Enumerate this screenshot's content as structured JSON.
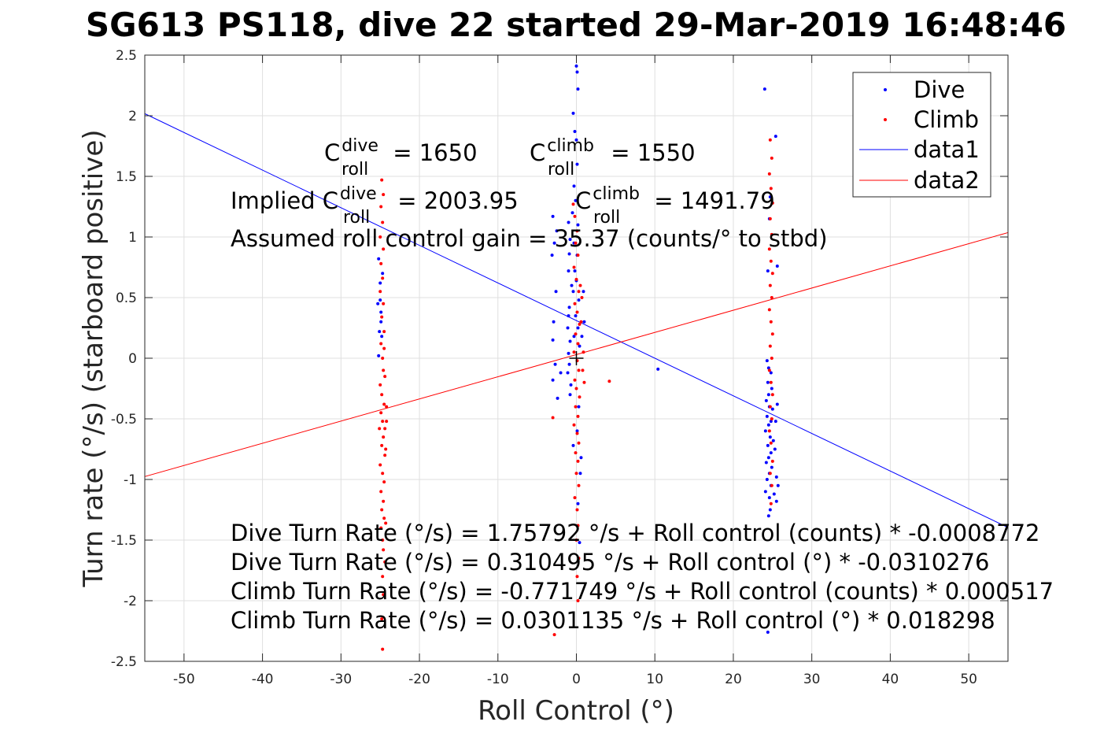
{
  "title": "SG613 PS118, dive 22 started 29-Mar-2019 16:48:46",
  "chart_data": {
    "type": "scatter",
    "xlabel": "Roll Control (°)",
    "ylabel": "Turn rate (°/s) (starboard positive)",
    "xlim": [
      -55,
      55
    ],
    "ylim": [
      -2.5,
      2.5
    ],
    "xticks": [
      -50,
      -40,
      -30,
      -20,
      -10,
      0,
      10,
      20,
      30,
      40,
      50
    ],
    "yticks": [
      -2.5,
      -2,
      -1.5,
      -1,
      -0.5,
      0,
      0.5,
      1,
      1.5,
      2,
      2.5
    ],
    "grid": true,
    "legend_position": "top-right",
    "series": [
      {
        "name": "Dive",
        "color": "#0000ff",
        "mode": "markers",
        "points": [
          [
            -25.2,
            0.82
          ],
          [
            -25.0,
            0.48
          ],
          [
            -25.3,
            0.45
          ],
          [
            -24.9,
            0.38
          ],
          [
            -25.1,
            0.22
          ],
          [
            -24.8,
            0.18
          ],
          [
            -25.2,
            0.02
          ],
          [
            -24.7,
            0.7
          ],
          [
            -25.0,
            0.62
          ],
          [
            -24.9,
            0.3
          ],
          [
            -3.0,
            1.17
          ],
          [
            -2.5,
            1.05
          ],
          [
            -2.8,
            0.95
          ],
          [
            -3.1,
            0.85
          ],
          [
            -2.6,
            0.55
          ],
          [
            -2.9,
            0.3
          ],
          [
            -3.0,
            0.15
          ],
          [
            -2.7,
            -0.05
          ],
          [
            -3.0,
            -0.18
          ],
          [
            -2.4,
            -0.33
          ],
          [
            -2.0,
            -0.12
          ],
          [
            -1.0,
            1.12
          ],
          [
            -0.8,
            0.98
          ],
          [
            -0.9,
            0.86
          ],
          [
            -1.0,
            0.72
          ],
          [
            -0.6,
            0.6
          ],
          [
            -0.9,
            0.42
          ],
          [
            -1.1,
            0.25
          ],
          [
            -0.8,
            0.14
          ],
          [
            -1.0,
            0.04
          ],
          [
            -0.9,
            -0.05
          ],
          [
            -1.1,
            -0.12
          ],
          [
            -0.7,
            -0.22
          ],
          [
            -1.0,
            0.35
          ],
          [
            -0.8,
            -0.3
          ],
          [
            -0.4,
            2.02
          ],
          [
            -0.2,
            1.87
          ],
          [
            0.0,
            1.8
          ],
          [
            0.1,
            1.6
          ],
          [
            -0.3,
            1.42
          ],
          [
            -0.1,
            1.3
          ],
          [
            -0.5,
            1.2
          ],
          [
            0.2,
            1.1
          ],
          [
            -0.3,
            0.95
          ],
          [
            0.1,
            0.85
          ],
          [
            -0.2,
            0.72
          ],
          [
            0.0,
            0.64
          ],
          [
            -0.4,
            0.55
          ],
          [
            0.3,
            0.48
          ],
          [
            -0.1,
            0.35
          ],
          [
            0.2,
            0.25
          ],
          [
            -0.3,
            0.18
          ],
          [
            0.4,
            0.1
          ],
          [
            0.0,
            2.41
          ],
          [
            0.1,
            2.36
          ],
          [
            0.2,
            2.22
          ],
          [
            0.3,
            -0.4
          ],
          [
            0.1,
            -0.6
          ],
          [
            -0.4,
            -0.72
          ],
          [
            0.5,
            -0.95
          ],
          [
            0.2,
            -1.2
          ],
          [
            0.4,
            -1.52
          ],
          [
            0.6,
            -0.82
          ],
          [
            0.7,
            0.18
          ],
          [
            0.9,
            0.55
          ],
          [
            1.0,
            0.3
          ],
          [
            10.4,
            -0.09
          ],
          [
            24.0,
            2.22
          ],
          [
            25.4,
            1.83
          ],
          [
            24.7,
            1.33
          ],
          [
            24.6,
            1.15
          ],
          [
            25.6,
            0.76
          ],
          [
            24.4,
            0.72
          ],
          [
            24.3,
            -0.02
          ],
          [
            24.5,
            -0.08
          ],
          [
            24.8,
            -0.12
          ],
          [
            24.4,
            -0.2
          ],
          [
            24.9,
            -0.25
          ],
          [
            24.5,
            -0.3
          ],
          [
            24.2,
            -0.35
          ],
          [
            24.6,
            -0.4
          ],
          [
            25.0,
            -0.42
          ],
          [
            24.3,
            -0.48
          ],
          [
            24.8,
            -0.52
          ],
          [
            24.5,
            -0.55
          ],
          [
            24.1,
            -0.6
          ],
          [
            24.7,
            -0.65
          ],
          [
            25.1,
            -0.68
          ],
          [
            24.4,
            -0.72
          ],
          [
            24.8,
            -0.78
          ],
          [
            24.5,
            -0.82
          ],
          [
            24.2,
            -0.86
          ],
          [
            24.9,
            -0.9
          ],
          [
            24.6,
            -0.95
          ],
          [
            24.3,
            -1.0
          ],
          [
            24.8,
            -1.05
          ],
          [
            24.1,
            -1.1
          ],
          [
            24.6,
            -1.15
          ],
          [
            25.2,
            -1.12
          ],
          [
            25.5,
            -1.18
          ],
          [
            24.7,
            -1.25
          ],
          [
            24.5,
            -1.3
          ],
          [
            25.6,
            -0.38
          ],
          [
            25.4,
            -0.52
          ],
          [
            25.3,
            -0.75
          ],
          [
            25.5,
            -0.98
          ],
          [
            25.7,
            -1.05
          ],
          [
            24.4,
            -2.26
          ]
        ]
      },
      {
        "name": "Climb",
        "color": "#ff0000",
        "mode": "markers",
        "points": [
          [
            -24.8,
            1.47
          ],
          [
            -24.6,
            1.35
          ],
          [
            -24.9,
            1.25
          ],
          [
            -24.7,
            1.12
          ],
          [
            -25.0,
            1.0
          ],
          [
            -24.6,
            0.9
          ],
          [
            -24.9,
            0.78
          ],
          [
            -24.7,
            0.66
          ],
          [
            -25.0,
            0.55
          ],
          [
            -24.6,
            0.45
          ],
          [
            -24.8,
            0.34
          ],
          [
            -24.5,
            0.22
          ],
          [
            -24.9,
            0.12
          ],
          [
            -24.7,
            0.0
          ],
          [
            -24.6,
            -0.1
          ],
          [
            -25.0,
            -0.22
          ],
          [
            -24.8,
            -0.3
          ],
          [
            -24.5,
            -0.38
          ],
          [
            -24.9,
            -0.45
          ],
          [
            -24.7,
            -0.52
          ],
          [
            -25.1,
            -0.58
          ],
          [
            -24.6,
            -0.65
          ],
          [
            -24.8,
            -0.72
          ],
          [
            -24.4,
            -0.8
          ],
          [
            -25.0,
            -0.88
          ],
          [
            -24.7,
            -0.95
          ],
          [
            -24.5,
            -1.02
          ],
          [
            -24.9,
            -1.1
          ],
          [
            -24.6,
            -1.18
          ],
          [
            -24.8,
            -1.25
          ],
          [
            -24.5,
            -1.32
          ],
          [
            -24.9,
            -1.4
          ],
          [
            -24.7,
            -1.5
          ],
          [
            -24.6,
            -1.58
          ],
          [
            -24.4,
            -1.68
          ],
          [
            -24.7,
            -1.8
          ],
          [
            -24.6,
            -1.95
          ],
          [
            -24.8,
            -2.15
          ],
          [
            -24.7,
            -2.4
          ],
          [
            -24.4,
            -0.58
          ],
          [
            -24.3,
            -0.75
          ],
          [
            -24.2,
            -0.4
          ],
          [
            -24.3,
            -1.36
          ],
          [
            -24.5,
            0.08
          ],
          [
            -24.4,
            -0.15
          ],
          [
            -24.2,
            -0.52
          ],
          [
            -3.0,
            -0.49
          ],
          [
            -2.8,
            -2.28
          ],
          [
            -0.4,
            1.27
          ],
          [
            -0.2,
            1.17
          ],
          [
            0.1,
            1.05
          ],
          [
            -0.1,
            0.95
          ],
          [
            0.2,
            0.85
          ],
          [
            -0.3,
            0.75
          ],
          [
            0.0,
            0.65
          ],
          [
            0.3,
            0.55
          ],
          [
            -0.2,
            0.45
          ],
          [
            0.1,
            0.38
          ],
          [
            0.4,
            0.28
          ],
          [
            -0.1,
            0.2
          ],
          [
            0.2,
            0.12
          ],
          [
            -0.3,
            0.05
          ],
          [
            0.1,
            -0.02
          ],
          [
            0.3,
            -0.1
          ],
          [
            -0.2,
            -0.18
          ],
          [
            0.0,
            -0.25
          ],
          [
            0.4,
            -0.32
          ],
          [
            -0.1,
            -0.4
          ],
          [
            0.2,
            -0.48
          ],
          [
            -0.3,
            -0.55
          ],
          [
            0.1,
            -0.62
          ],
          [
            0.3,
            -0.7
          ],
          [
            -0.1,
            -0.78
          ],
          [
            0.2,
            -0.85
          ],
          [
            0.0,
            -0.95
          ],
          [
            0.3,
            -1.05
          ],
          [
            -0.2,
            -1.15
          ],
          [
            0.1,
            -1.25
          ],
          [
            0.2,
            -1.38
          ],
          [
            0.0,
            -1.5
          ],
          [
            0.3,
            -1.65
          ],
          [
            0.1,
            -1.8
          ],
          [
            0.2,
            -2.0
          ],
          [
            0.6,
            0.3
          ],
          [
            0.7,
            0.5
          ],
          [
            0.8,
            -0.1
          ],
          [
            0.5,
            0.6
          ],
          [
            0.9,
            0.05
          ],
          [
            1.0,
            -0.2
          ],
          [
            4.2,
            -0.19
          ],
          [
            24.7,
            1.8
          ],
          [
            24.9,
            1.65
          ],
          [
            24.6,
            1.52
          ],
          [
            24.8,
            1.4
          ],
          [
            25.0,
            1.28
          ],
          [
            24.7,
            1.15
          ],
          [
            24.9,
            1.02
          ],
          [
            24.6,
            0.9
          ],
          [
            24.8,
            0.8
          ],
          [
            25.0,
            0.7
          ],
          [
            24.7,
            0.6
          ],
          [
            24.9,
            0.5
          ],
          [
            24.6,
            0.4
          ],
          [
            24.8,
            0.3
          ],
          [
            25.0,
            0.2
          ],
          [
            24.7,
            0.1
          ],
          [
            24.9,
            0.0
          ],
          [
            24.6,
            -0.1
          ],
          [
            24.8,
            -0.2
          ],
          [
            25.0,
            -0.3
          ],
          [
            24.7,
            -0.4
          ],
          [
            24.9,
            -0.5
          ],
          [
            24.6,
            -0.6
          ],
          [
            24.8,
            -0.7
          ],
          [
            25.0,
            -0.85
          ],
          [
            24.7,
            -0.95
          ],
          [
            24.9,
            -1.05
          ],
          [
            24.8,
            -1.2
          ]
        ]
      },
      {
        "name": "data1",
        "color": "#0000ff",
        "mode": "line",
        "x": [
          -55,
          55
        ],
        "y": [
          2.017,
          -1.396
        ]
      },
      {
        "name": "data2",
        "color": "#ff0000",
        "mode": "line",
        "x": [
          -55,
          55
        ],
        "y": [
          -0.976,
          1.036
        ]
      }
    ],
    "annotations": {
      "c_dive": {
        "prefix": "C",
        "sup": "dive",
        "sub": "roll",
        "suffix": " = 1650"
      },
      "c_climb": {
        "prefix": "C",
        "sup": "climb",
        "sub": "roll",
        "suffix": " = 1550"
      },
      "implied_prefix": "Implied C",
      "implied_dive": {
        "sup": "dive",
        "sub": "roll",
        "suffix": " = 2003.95"
      },
      "implied_climb": {
        "prefix": "C",
        "sup": "climb",
        "sub": "roll",
        "suffix": " = 1491.79"
      },
      "gain": "Assumed roll control gain = 35.37 (counts/° to stbd)",
      "eq1": "Dive Turn Rate (°/s) = 1.75792 °/s + Roll control (counts) * -0.0008772",
      "eq2": "Dive Turn Rate (°/s) = 0.310495 °/s + Roll control (°) * -0.0310276",
      "eq3": "Climb Turn Rate (°/s) = -0.771749 °/s + Roll control (counts) * 0.000517",
      "eq4": "Climb Turn Rate (°/s) = 0.0301135 °/s + Roll control (°) * 0.018298"
    },
    "marker_plus": [
      0,
      0
    ]
  }
}
